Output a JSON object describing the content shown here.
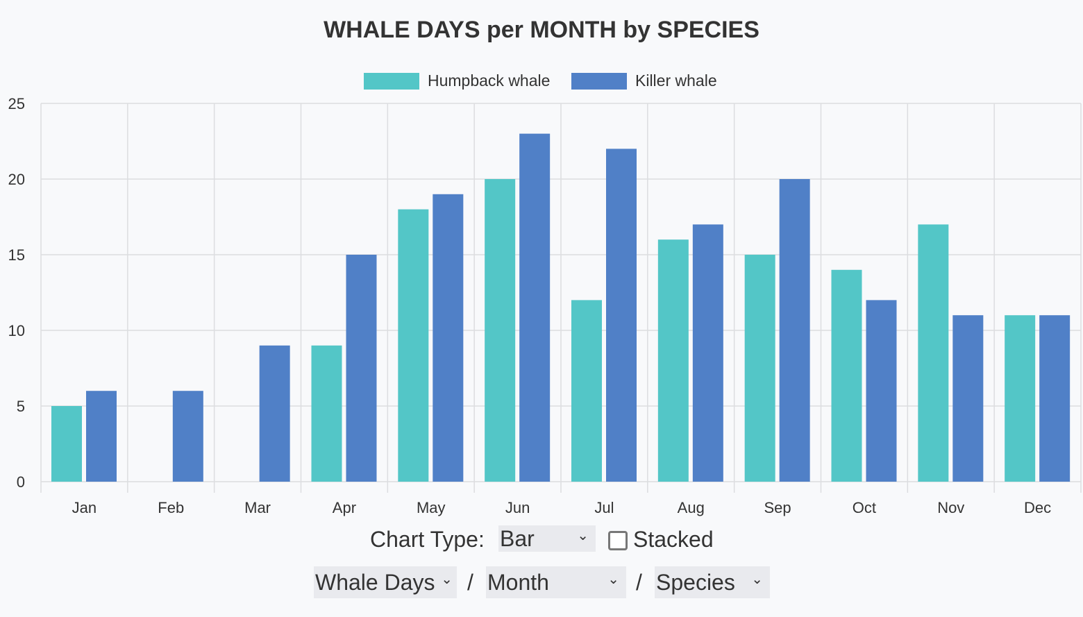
{
  "chart_data": {
    "type": "bar",
    "title": "WHALE DAYS per MONTH by SPECIES",
    "categories": [
      "Jan",
      "Feb",
      "Mar",
      "Apr",
      "May",
      "Jun",
      "Jul",
      "Aug",
      "Sep",
      "Oct",
      "Nov",
      "Dec"
    ],
    "series": [
      {
        "name": "Humpback whale",
        "color": "#53c6c7",
        "values": [
          5,
          0,
          0,
          9,
          18,
          20,
          12,
          16,
          15,
          14,
          17,
          11
        ]
      },
      {
        "name": "Killer whale",
        "color": "#5080c7",
        "values": [
          6,
          6,
          9,
          15,
          19,
          23,
          22,
          17,
          20,
          12,
          11,
          11
        ]
      }
    ],
    "ylim": [
      0,
      25
    ],
    "yticks": [
      0,
      5,
      10,
      15,
      20,
      25
    ],
    "grid": true,
    "legend": "top",
    "xlabel": "",
    "ylabel": ""
  },
  "controls": {
    "chart_type_label": "Chart Type:",
    "chart_type_value": "Bar",
    "stacked_label": "Stacked",
    "stacked_checked": false,
    "measure_value": "Whale Days",
    "separator": "/",
    "x_value": "Month",
    "group_value": "Species",
    "chevron": "⌄"
  }
}
